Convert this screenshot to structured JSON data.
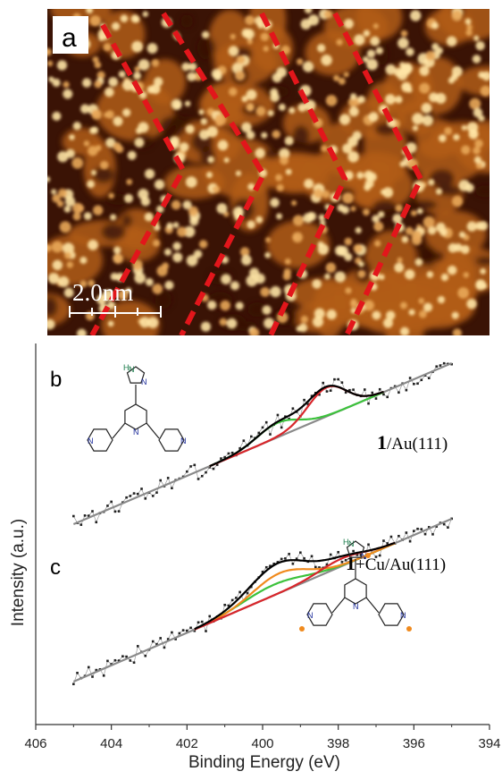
{
  "stm_panel": {
    "label": "a",
    "scale_bar": "2.0nm",
    "colors": {
      "dark": "#3a1305",
      "mid": "#b25d18",
      "bright": "#ffe6a6",
      "dashes": "#e2161b",
      "scale": "#ffffff"
    }
  },
  "xps_panel": {
    "label_b": "b",
    "label_c": "c",
    "sample_b": {
      "bold": "1",
      "rest": "/Au(111)"
    },
    "sample_c": {
      "bold": "1",
      "rest": "+Cu/Au(111)"
    },
    "molecule_atoms": {
      "nh": "H",
      "n": "N"
    }
  },
  "chart_data": {
    "type": "line",
    "xlabel": "Binding Energy (eV)",
    "ylabel": "Intensity (a.u.)",
    "xlim": [
      406,
      394
    ],
    "x_reversed": true,
    "xticks": [
      "406",
      "404",
      "402",
      "400",
      "398",
      "396",
      "394"
    ],
    "yticks_shown": false,
    "panels": [
      {
        "label": "b",
        "sample": "1/Au(111)",
        "x_range": [
          405,
          395
        ],
        "background_line": [
          [
            405,
            0.0
          ],
          [
            395,
            1.0
          ]
        ],
        "components": [
          {
            "color": "#3cc23c",
            "center": 399.6,
            "amplitude": 0.09,
            "fwhm": 1.3
          },
          {
            "color": "#d8262b",
            "center": 398.3,
            "amplitude": 0.18,
            "fwhm": 1.2
          }
        ],
        "envelope_color": "#000000",
        "fit_range": [
          401.4,
          396.8
        ]
      },
      {
        "label": "c",
        "sample": "1+Cu/Au(111)",
        "x_range": [
          405,
          395
        ],
        "background_line": [
          [
            405,
            0.0
          ],
          [
            395,
            1.0
          ]
        ],
        "components": [
          {
            "color": "#3cc23c",
            "center": 399.7,
            "amplitude": 0.07,
            "fwhm": 1.9
          },
          {
            "color": "#f08a1d",
            "center": 399.55,
            "amplitude": 0.13,
            "fwhm": 1.7
          },
          {
            "color": "#d8262b",
            "center": 397.9,
            "amplitude": 0.05,
            "fwhm": 1.4
          }
        ],
        "envelope_color": "#000000",
        "fit_range": [
          401.8,
          396.5
        ]
      }
    ],
    "background_color": "#8a8a8a",
    "raw_data_color": "#555555"
  }
}
